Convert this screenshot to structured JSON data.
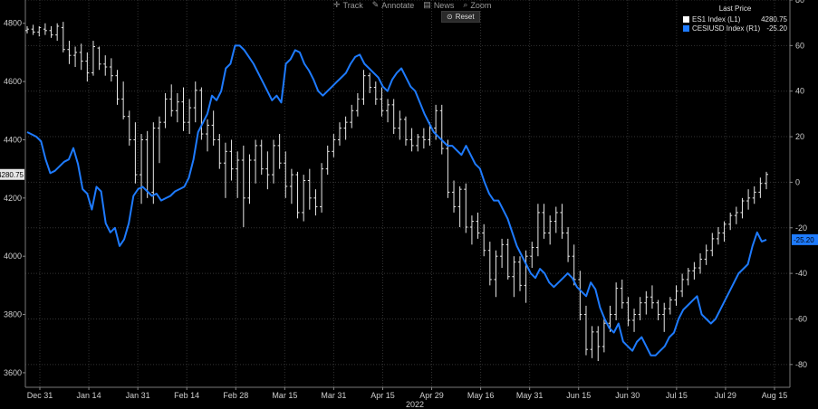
{
  "toolbar": {
    "track": "Track",
    "annotate": "Annotate",
    "news": "News",
    "zoom": "Zoom",
    "reset": "Reset"
  },
  "legend": {
    "header": "Last Price",
    "items": [
      {
        "name": "ES1 Index  (L1)",
        "value": "4280.75",
        "color": "#ffffff"
      },
      {
        "name": "CESIUSD Index  (R1)",
        "value": "-25.20",
        "color": "#1e7bff"
      }
    ]
  },
  "chart_data": {
    "type": "line",
    "year_label": "2022",
    "x_tick_labels": [
      "Dec 31",
      "Jan 14",
      "Jan 31",
      "Feb 14",
      "Feb 28",
      "Mar 15",
      "Mar 31",
      "Apr 15",
      "Apr 29",
      "May 16",
      "May 31",
      "Jun 15",
      "Jun 30",
      "Jul 15",
      "Jul 29",
      "Aug 15"
    ],
    "left_axis": {
      "ylim": [
        3550,
        4880
      ],
      "ticks": [
        3600,
        3800,
        4000,
        4200,
        4400,
        4600,
        4800
      ],
      "last_value_label": "4280.75"
    },
    "right_axis": {
      "ylim": [
        -90,
        80
      ],
      "ticks": [
        -80,
        -60,
        -40,
        -20,
        0,
        20,
        40,
        60,
        80
      ],
      "last_value_label": "-25.20"
    },
    "grid": true,
    "legend_position": "top-right",
    "series": [
      {
        "name": "ES1 Index (L1)",
        "style": "ohlc-bars",
        "axis": "left",
        "color": "#ffffff",
        "ohlc": [
          [
            4775,
            4790,
            4765,
            4780
          ],
          [
            4780,
            4795,
            4760,
            4770
          ],
          [
            4770,
            4790,
            4755,
            4785
          ],
          [
            4780,
            4800,
            4760,
            4775
          ],
          [
            4775,
            4790,
            4750,
            4760
          ],
          [
            4760,
            4800,
            4740,
            4790
          ],
          [
            4785,
            4805,
            4700,
            4710
          ],
          [
            4710,
            4740,
            4660,
            4690
          ],
          [
            4690,
            4720,
            4650,
            4700
          ],
          [
            4700,
            4730,
            4640,
            4670
          ],
          [
            4670,
            4700,
            4600,
            4630
          ],
          [
            4630,
            4740,
            4620,
            4720
          ],
          [
            4715,
            4720,
            4640,
            4660
          ],
          [
            4660,
            4690,
            4620,
            4650
          ],
          [
            4650,
            4680,
            4600,
            4620
          ],
          [
            4620,
            4640,
            4520,
            4540
          ],
          [
            4540,
            4600,
            4470,
            4480
          ],
          [
            4480,
            4500,
            4380,
            4400
          ],
          [
            4400,
            4460,
            4250,
            4280
          ],
          [
            4280,
            4420,
            4180,
            4400
          ],
          [
            4400,
            4430,
            4200,
            4220
          ],
          [
            4220,
            4460,
            4180,
            4440
          ],
          [
            4440,
            4480,
            4320,
            4460
          ],
          [
            4460,
            4560,
            4440,
            4540
          ],
          [
            4540,
            4590,
            4480,
            4500
          ],
          [
            4500,
            4560,
            4460,
            4530
          ],
          [
            4530,
            4580,
            4430,
            4460
          ],
          [
            4460,
            4540,
            4420,
            4510
          ],
          [
            4510,
            4600,
            4460,
            4570
          ],
          [
            4570,
            4580,
            4400,
            4420
          ],
          [
            4420,
            4470,
            4360,
            4450
          ],
          [
            4450,
            4500,
            4380,
            4400
          ],
          [
            4400,
            4420,
            4300,
            4320
          ],
          [
            4320,
            4390,
            4200,
            4360
          ],
          [
            4360,
            4400,
            4260,
            4300
          ],
          [
            4300,
            4360,
            4200,
            4330
          ],
          [
            4330,
            4380,
            4100,
            4200
          ],
          [
            4200,
            4350,
            4180,
            4330
          ],
          [
            4330,
            4400,
            4250,
            4380
          ],
          [
            4380,
            4400,
            4280,
            4300
          ],
          [
            4300,
            4360,
            4230,
            4280
          ],
          [
            4280,
            4400,
            4250,
            4380
          ],
          [
            4380,
            4420,
            4300,
            4320
          ],
          [
            4320,
            4360,
            4200,
            4240
          ],
          [
            4240,
            4300,
            4180,
            4280
          ],
          [
            4280,
            4290,
            4130,
            4150
          ],
          [
            4150,
            4280,
            4120,
            4260
          ],
          [
            4260,
            4300,
            4160,
            4200
          ],
          [
            4200,
            4230,
            4140,
            4170
          ],
          [
            4170,
            4320,
            4150,
            4300
          ],
          [
            4300,
            4380,
            4280,
            4360
          ],
          [
            4360,
            4420,
            4340,
            4400
          ],
          [
            4400,
            4460,
            4380,
            4440
          ],
          [
            4440,
            4480,
            4400,
            4460
          ],
          [
            4460,
            4520,
            4440,
            4500
          ],
          [
            4500,
            4560,
            4480,
            4540
          ],
          [
            4540,
            4640,
            4520,
            4620
          ],
          [
            4620,
            4630,
            4560,
            4580
          ],
          [
            4580,
            4600,
            4520,
            4540
          ],
          [
            4540,
            4580,
            4480,
            4500
          ],
          [
            4500,
            4540,
            4460,
            4520
          ],
          [
            4520,
            4540,
            4420,
            4440
          ],
          [
            4440,
            4500,
            4400,
            4470
          ],
          [
            4470,
            4480,
            4380,
            4400
          ],
          [
            4400,
            4440,
            4360,
            4380
          ],
          [
            4380,
            4420,
            4360,
            4410
          ],
          [
            4410,
            4440,
            4370,
            4400
          ],
          [
            4400,
            4460,
            4380,
            4440
          ],
          [
            4440,
            4520,
            4400,
            4500
          ],
          [
            4500,
            4520,
            4350,
            4370
          ],
          [
            4370,
            4400,
            4200,
            4220
          ],
          [
            4220,
            4260,
            4150,
            4170
          ],
          [
            4170,
            4240,
            4100,
            4230
          ],
          [
            4230,
            4250,
            4080,
            4100
          ],
          [
            4100,
            4140,
            4040,
            4120
          ],
          [
            4120,
            4150,
            4060,
            4080
          ],
          [
            4080,
            4110,
            4000,
            4020
          ],
          [
            4020,
            4050,
            3900,
            3920
          ],
          [
            3920,
            4020,
            3860,
            4000
          ],
          [
            4000,
            4060,
            3960,
            4040
          ],
          [
            4040,
            4060,
            3920,
            3930
          ],
          [
            3930,
            4000,
            3860,
            3980
          ],
          [
            3980,
            4000,
            3880,
            3900
          ],
          [
            3900,
            4020,
            3840,
            4000
          ],
          [
            4000,
            4050,
            3960,
            4030
          ],
          [
            4030,
            4180,
            4000,
            4150
          ],
          [
            4150,
            4180,
            4060,
            4080
          ],
          [
            4080,
            4140,
            4040,
            4120
          ],
          [
            4120,
            4170,
            4080,
            4150
          ],
          [
            4150,
            4180,
            4060,
            4080
          ],
          [
            4080,
            4100,
            3980,
            4000
          ],
          [
            4000,
            4040,
            3900,
            3920
          ],
          [
            3920,
            3950,
            3780,
            3800
          ],
          [
            3800,
            3830,
            3660,
            3680
          ],
          [
            3680,
            3760,
            3650,
            3740
          ],
          [
            3740,
            3760,
            3640,
            3690
          ],
          [
            3690,
            3790,
            3670,
            3770
          ],
          [
            3770,
            3830,
            3740,
            3800
          ],
          [
            3800,
            3910,
            3780,
            3890
          ],
          [
            3890,
            3920,
            3820,
            3840
          ],
          [
            3840,
            3860,
            3760,
            3780
          ],
          [
            3780,
            3820,
            3740,
            3800
          ],
          [
            3800,
            3860,
            3780,
            3840
          ],
          [
            3840,
            3880,
            3800,
            3860
          ],
          [
            3860,
            3900,
            3820,
            3840
          ],
          [
            3840,
            3850,
            3780,
            3800
          ],
          [
            3800,
            3840,
            3740,
            3820
          ],
          [
            3820,
            3860,
            3800,
            3850
          ],
          [
            3850,
            3900,
            3830,
            3880
          ],
          [
            3880,
            3940,
            3860,
            3920
          ],
          [
            3920,
            3960,
            3900,
            3950
          ],
          [
            3950,
            3980,
            3920,
            3960
          ],
          [
            3960,
            4010,
            3940,
            3990
          ],
          [
            3990,
            4040,
            3970,
            4020
          ],
          [
            4020,
            4080,
            4000,
            4060
          ],
          [
            4060,
            4100,
            4040,
            4080
          ],
          [
            4080,
            4120,
            4050,
            4110
          ],
          [
            4110,
            4150,
            4090,
            4140
          ],
          [
            4140,
            4170,
            4110,
            4150
          ],
          [
            4150,
            4200,
            4130,
            4190
          ],
          [
            4190,
            4230,
            4160,
            4200
          ],
          [
            4200,
            4240,
            4180,
            4220
          ],
          [
            4220,
            4270,
            4200,
            4250
          ],
          [
            4250,
            4290,
            4230,
            4281
          ]
        ]
      },
      {
        "name": "CESIUSD Index (R1)",
        "style": "line",
        "axis": "right",
        "color": "#1e7bff",
        "values": [
          22,
          21,
          20,
          18,
          10,
          4,
          5,
          7,
          9,
          10,
          15,
          8,
          -3,
          -5,
          -12,
          -2,
          -4,
          -18,
          -22,
          -20,
          -28,
          -25,
          -18,
          -6,
          -3,
          -2,
          -4,
          -6,
          -5,
          -8,
          -7,
          -6,
          -4,
          -3,
          -2,
          2,
          10,
          22,
          26,
          30,
          38,
          36,
          40,
          50,
          52,
          60,
          60,
          58,
          55,
          52,
          48,
          44,
          40,
          36,
          38,
          35,
          52,
          54,
          58,
          57,
          52,
          49,
          45,
          40,
          38,
          40,
          42,
          44,
          46,
          48,
          52,
          55,
          56,
          52,
          50,
          48,
          46,
          42,
          40,
          45,
          48,
          50,
          46,
          42,
          40,
          35,
          30,
          26,
          22,
          20,
          18,
          16,
          16,
          14,
          12,
          16,
          12,
          8,
          6,
          0,
          -5,
          -8,
          -8,
          -12,
          -16,
          -22,
          -28,
          -32,
          -36,
          -40,
          -42,
          -38,
          -40,
          -44,
          -46,
          -44,
          -42,
          -40,
          -42,
          -46,
          -48,
          -50,
          -44,
          -47,
          -55,
          -60,
          -64,
          -66,
          -62,
          -70,
          -72,
          -74,
          -70,
          -68,
          -72,
          -76,
          -76,
          -74,
          -72,
          -68,
          -66,
          -60,
          -56,
          -54,
          -52,
          -50,
          -58,
          -60,
          -62,
          -60,
          -56,
          -52,
          -48,
          -44,
          -40,
          -38,
          -36,
          -28,
          -22,
          -26,
          -25.2
        ]
      }
    ]
  }
}
